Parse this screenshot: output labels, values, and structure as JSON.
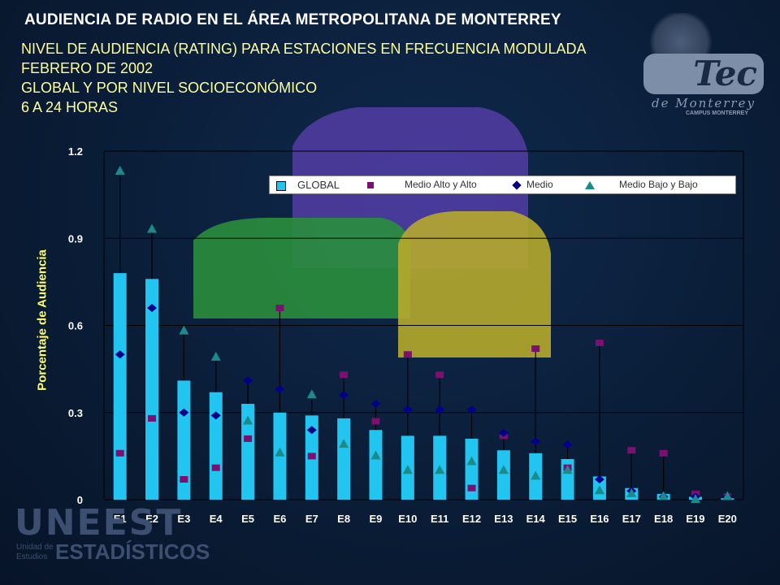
{
  "header": {
    "title": "AUDIENCIA DE RADIO EN EL ÁREA METROPOLITANA DE MONTERREY",
    "subtitles": [
      "NIVEL DE AUDIENCIA (RATING) PARA ESTACIONES EN FRECUENCIA MODULADA",
      "FEBRERO DE 2002",
      "GLOBAL Y POR NIVEL SOCIOECONÓMICO",
      "6 A 24 HORAS"
    ]
  },
  "logos": {
    "tec": {
      "name": "Tec",
      "line1": "de Monterrey",
      "line2": "CAMPUS MONTERREY"
    },
    "uneest": {
      "name": "UNEEST",
      "line1": "Unidad de",
      "line2": "Estudios",
      "line3": "ESTADÍSTICOS"
    }
  },
  "colors": {
    "global": "#22c4f0",
    "medio_alto_alto": "#7b1070",
    "medio": "#00008b",
    "medio_bajo_bajo": "#1a8a8a",
    "axis_text": "#ffffff",
    "ylabel": "#ffff66"
  },
  "chart_data": {
    "type": "bar",
    "ylabel": "Porcentaje de Audiencia",
    "ylim": [
      0,
      1.2
    ],
    "yticks": [
      "0",
      "0.3",
      "0.6",
      "0.9",
      "1.2"
    ],
    "ytick_values": [
      0,
      0.3,
      0.6,
      0.9,
      1.2
    ],
    "grid": true,
    "legend_position": "top-right",
    "categories": [
      "E1",
      "E2",
      "E3",
      "E4",
      "E5",
      "E6",
      "E7",
      "E8",
      "E9",
      "E10",
      "E11",
      "E12",
      "E13",
      "E14",
      "E15",
      "E16",
      "E17",
      "E18",
      "E19",
      "E20"
    ],
    "series": [
      {
        "name": "GLOBAL",
        "kind": "bar",
        "values": [
          0.78,
          0.76,
          0.41,
          0.37,
          0.33,
          0.3,
          0.29,
          0.28,
          0.24,
          0.22,
          0.22,
          0.21,
          0.17,
          0.16,
          0.14,
          0.08,
          0.04,
          0.02,
          0.01,
          0.005
        ]
      },
      {
        "name": "Medio Alto y Alto",
        "kind": "square",
        "values": [
          0.16,
          0.28,
          0.07,
          0.11,
          0.21,
          0.66,
          0.15,
          0.43,
          0.27,
          0.5,
          0.43,
          0.04,
          0.22,
          0.52,
          0.11,
          0.54,
          0.17,
          0.16,
          0.02,
          0.01
        ]
      },
      {
        "name": "Medio",
        "kind": "diamond",
        "values": [
          0.5,
          0.66,
          0.3,
          0.29,
          0.41,
          0.38,
          0.24,
          0.36,
          0.33,
          0.31,
          0.31,
          0.31,
          0.23,
          0.2,
          0.19,
          0.07,
          0.03,
          0.01,
          0.01,
          0.01
        ]
      },
      {
        "name": "Medio Bajo y Bajo",
        "kind": "triangle",
        "values": [
          1.13,
          0.93,
          0.58,
          0.49,
          0.27,
          0.16,
          0.36,
          0.19,
          0.15,
          0.1,
          0.1,
          0.13,
          0.1,
          0.08,
          0.1,
          0.03,
          0.02,
          0.01,
          0.0,
          0.01
        ]
      }
    ]
  }
}
